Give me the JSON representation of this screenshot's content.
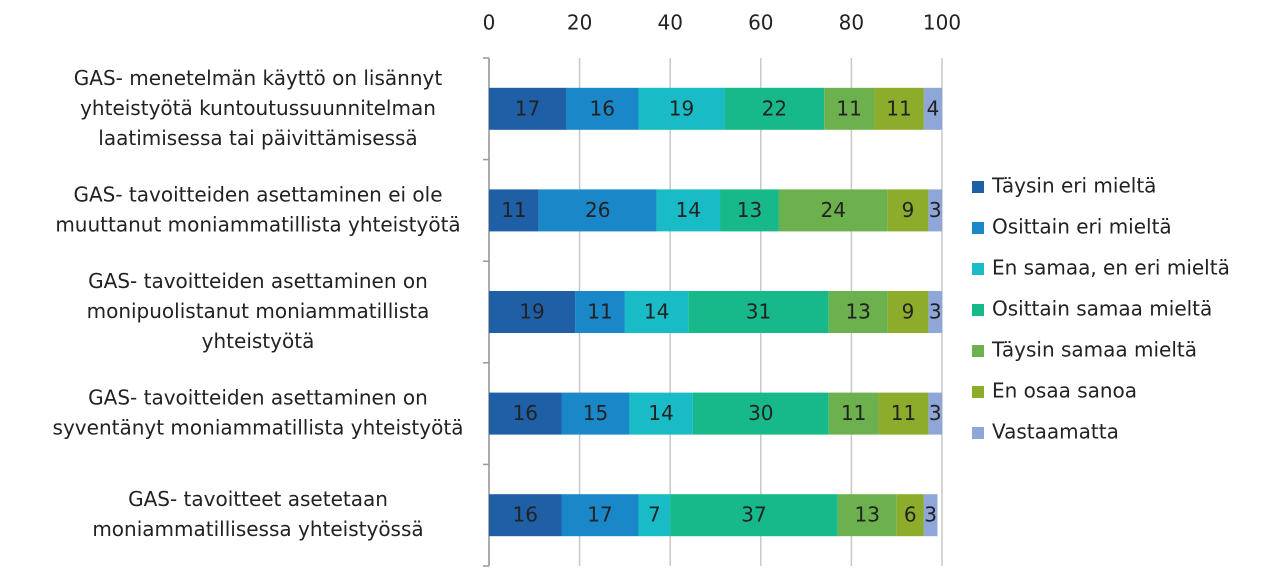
{
  "chart_data": {
    "type": "stacked_bar_horizontal",
    "categories": [
      "GAS- menetelmän käyttö  on lisännyt\nyhteistyötä kuntoutussuunnitelman\nlaatimisessa tai päivittämisessä",
      "GAS- tavoitteiden asettaminen ei ole\nmuuttanut moniammatillista yhteistyötä",
      "GAS- tavoitteiden asettaminen on\nmonipuolistanut moniammatillista\nyhteistyötä",
      "GAS- tavoitteiden asettaminen on\nsyventänyt moniammatillista yhteistyötä",
      "GAS- tavoitteet asetetaan\nmoniammatillisessa yhteistyössä"
    ],
    "series": [
      {
        "name": "Täysin eri mieltä",
        "color": "#1f5fa6",
        "values": [
          17,
          11,
          19,
          16,
          16
        ]
      },
      {
        "name": "Osittain eri mieltä",
        "color": "#1a87c8",
        "values": [
          16,
          26,
          11,
          15,
          17
        ]
      },
      {
        "name": "En samaa, en eri mieltä",
        "color": "#19bcc6",
        "values": [
          19,
          14,
          14,
          14,
          7
        ]
      },
      {
        "name": "Osittain samaa mieltä",
        "color": "#17b98a",
        "values": [
          22,
          13,
          31,
          30,
          37
        ]
      },
      {
        "name": "Täysin samaa mieltä",
        "color": "#6cb14e",
        "values": [
          11,
          24,
          13,
          11,
          13
        ]
      },
      {
        "name": "En osaa sanoa",
        "color": "#8dac2c",
        "values": [
          11,
          9,
          9,
          11,
          6
        ]
      },
      {
        "name": "Vastaamatta",
        "color": "#8ea6d8",
        "values": [
          4,
          3,
          3,
          3,
          3
        ]
      }
    ],
    "xlim": [
      0,
      100
    ],
    "xticks": [
      0,
      20,
      40,
      60,
      80,
      100
    ],
    "grid": true,
    "legend": "right"
  }
}
